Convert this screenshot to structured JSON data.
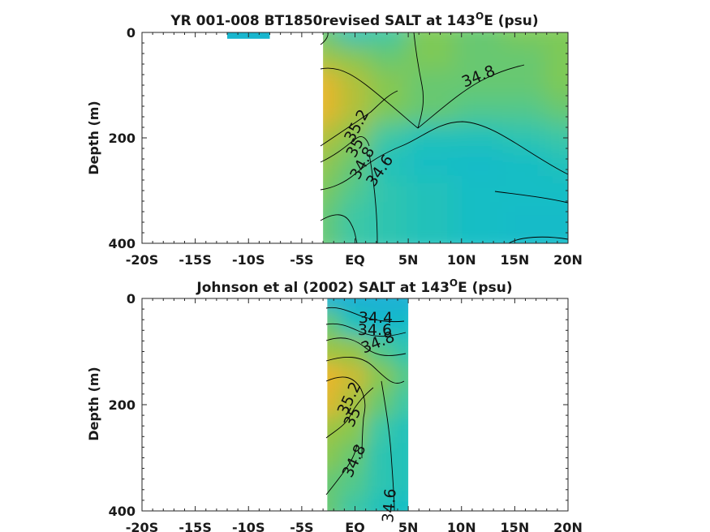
{
  "colors": {
    "low": "#1bb1d4",
    "cyan": "#16bec5",
    "teal": "#3cc7a5",
    "green": "#7ec957",
    "yellowgreen": "#a8c23c",
    "gold": "#e8b62c",
    "line": "#000000"
  },
  "chart_data": [
    {
      "type": "heatmap",
      "title": "YR 001-008 BT1850revised SALT at 143",
      "title_sup": "O",
      "title_tail": "E (psu)",
      "ylabel": "Depth (m)",
      "xlabel": "",
      "xlim": [
        -20,
        20
      ],
      "ylim": [
        400,
        0
      ],
      "x_ticks": [
        -20,
        -15,
        -10,
        -5,
        0,
        5,
        10,
        15,
        20
      ],
      "x_tick_labels": [
        "-20S",
        "-15S",
        "-10S",
        "-5S",
        "EQ",
        "5N",
        "10N",
        "15N",
        "20N"
      ],
      "y_ticks": [
        0,
        200,
        400
      ],
      "y_tick_labels": [
        "0",
        "200",
        "400"
      ],
      "grid": false,
      "data_extent": {
        "x": [
          -3,
          20
        ],
        "y": [
          0,
          400
        ]
      },
      "small_patch": {
        "x": [
          -12,
          -8
        ],
        "y": [
          0,
          12
        ],
        "value": 34.4
      },
      "grid_x": [
        -3,
        0,
        3,
        7,
        12,
        16,
        20
      ],
      "grid_y": [
        0,
        50,
        100,
        150,
        200,
        250,
        300,
        350,
        400
      ],
      "values": [
        [
          34.8,
          34.6,
          34.7,
          34.85,
          34.8,
          34.85,
          34.85
        ],
        [
          35.0,
          34.9,
          34.8,
          34.85,
          34.8,
          34.8,
          34.85
        ],
        [
          35.35,
          35.1,
          34.9,
          34.8,
          34.8,
          34.8,
          34.85
        ],
        [
          35.35,
          35.1,
          34.85,
          34.8,
          34.75,
          34.75,
          34.8
        ],
        [
          35.1,
          34.9,
          34.7,
          34.6,
          34.6,
          34.65,
          34.7
        ],
        [
          34.95,
          34.8,
          34.6,
          34.55,
          34.5,
          34.55,
          34.6
        ],
        [
          34.85,
          34.75,
          34.65,
          34.6,
          34.55,
          34.55,
          34.55
        ],
        [
          34.8,
          34.7,
          34.65,
          34.6,
          34.55,
          34.5,
          34.5
        ],
        [
          34.8,
          34.7,
          34.65,
          34.6,
          34.55,
          34.5,
          34.5
        ]
      ],
      "contour_labels": [
        "34.8",
        "35.2",
        "35",
        "34.8",
        "34.6"
      ]
    },
    {
      "type": "heatmap",
      "title": "Johnson et al (2002) SALT at 143",
      "title_sup": "O",
      "title_tail": "E (psu)",
      "ylabel": "Depth (m)",
      "xlabel": "",
      "xlim": [
        -20,
        20
      ],
      "ylim": [
        400,
        0
      ],
      "x_ticks": [
        -20,
        -15,
        -10,
        -5,
        0,
        5,
        10,
        15,
        20
      ],
      "x_tick_labels": [
        "-20S",
        "-15S",
        "-10S",
        "-5S",
        "EQ",
        "5N",
        "10N",
        "15N",
        "20N"
      ],
      "y_ticks": [
        0,
        200,
        400
      ],
      "y_tick_labels": [
        "0",
        "200",
        "400"
      ],
      "grid": false,
      "data_extent": {
        "x": [
          -2.6,
          5
        ],
        "y": [
          0,
          400
        ]
      },
      "grid_x": [
        -2.6,
        0,
        2.5,
        5
      ],
      "grid_y": [
        0,
        50,
        100,
        150,
        200,
        250,
        300,
        350,
        400
      ],
      "values": [
        [
          34.35,
          34.3,
          34.3,
          34.3
        ],
        [
          34.8,
          34.6,
          34.45,
          34.5
        ],
        [
          35.0,
          34.95,
          34.75,
          34.65
        ],
        [
          35.35,
          35.2,
          34.9,
          34.75
        ],
        [
          35.3,
          35.05,
          34.8,
          34.7
        ],
        [
          35.0,
          34.9,
          34.7,
          34.6
        ],
        [
          34.9,
          34.8,
          34.65,
          34.6
        ],
        [
          34.8,
          34.75,
          34.65,
          34.6
        ],
        [
          34.8,
          34.7,
          34.6,
          34.55
        ]
      ],
      "contour_labels": [
        "34.4",
        "34.6",
        "34.8",
        "35.2",
        "35",
        "34.8",
        "34.6"
      ]
    }
  ]
}
